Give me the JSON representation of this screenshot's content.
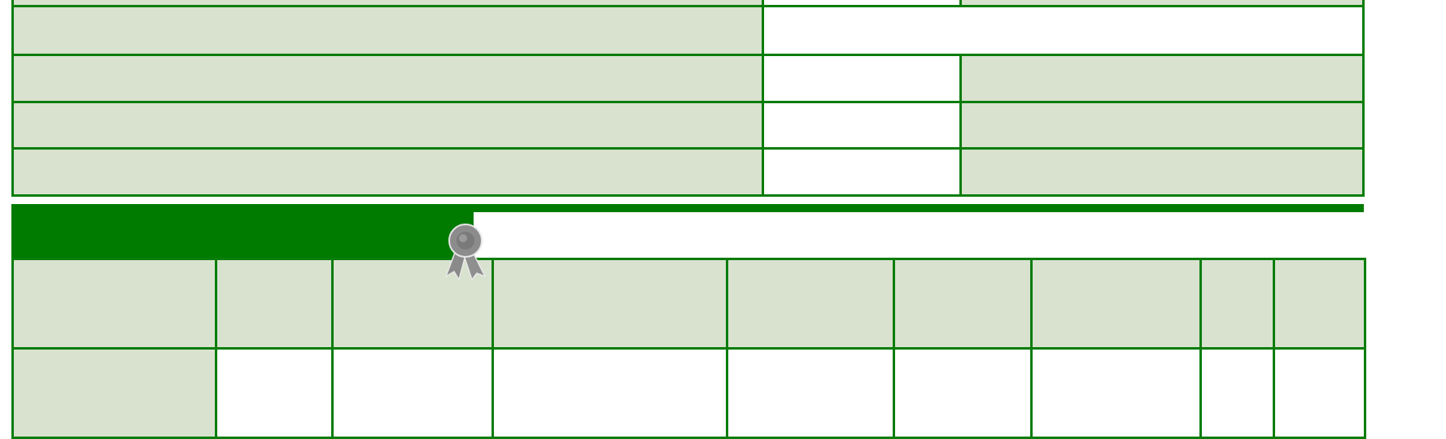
{
  "colors": {
    "border": "#0a7d0a",
    "header_band": "#007b00",
    "cell_shaded": "#d8e2cf",
    "cell_plain": "#ffffff"
  },
  "icons": {
    "award": "award-ribbon-icon"
  }
}
